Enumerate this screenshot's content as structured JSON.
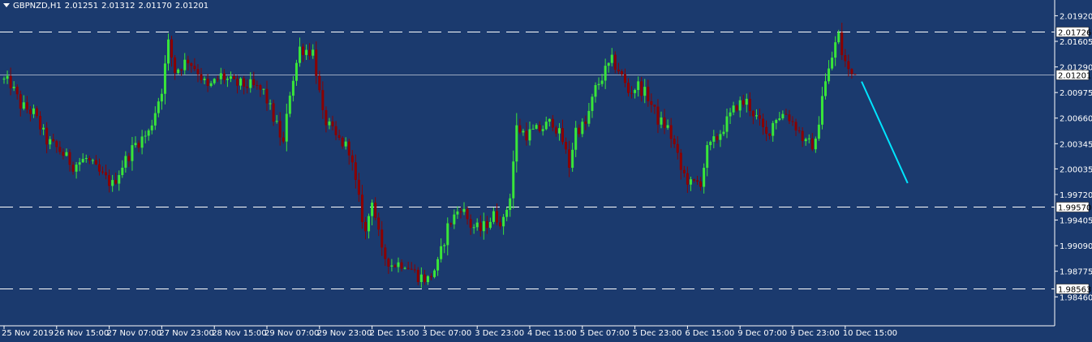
{
  "header": {
    "symbol": "GBPNZD,H1",
    "open": "2.01251",
    "high": "2.01312",
    "low": "2.01170",
    "close": "2.01201"
  },
  "colors": {
    "background": "#1b3a6e",
    "bull": "#39e639",
    "bear": "#8b0000",
    "grid": "#ffffff",
    "trend_line": "#00e5ff",
    "label_bg": "#ffffff",
    "label_text": "#000000"
  },
  "chart_data": {
    "type": "candlestick",
    "symbol": "GBPNZD",
    "timeframe": "H1",
    "ylim": [
      1.9846,
      2.0208
    ],
    "y_ticks": [
      2.0192,
      2.01605,
      2.0129,
      2.00975,
      2.0066,
      2.00345,
      2.00035,
      1.9972,
      1.99405,
      1.9909,
      1.98775,
      1.9846
    ],
    "y_tick_labels": [
      "2.01920",
      "2.01605",
      "2.01290",
      "2.00975",
      "2.00660",
      "2.00345",
      "2.00035",
      "1.99720",
      "1.99405",
      "1.99090",
      "1.98775",
      "1.98460"
    ],
    "x_labels": [
      "25 Nov 2019",
      "26 Nov 15:00",
      "27 Nov 07:00",
      "27 Nov 23:00",
      "28 Nov 15:00",
      "29 Nov 07:00",
      "29 Nov 23:00",
      "2 Dec 15:00",
      "3 Dec 07:00",
      "3 Dec 23:00",
      "4 Dec 15:00",
      "5 Dec 07:00",
      "5 Dec 23:00",
      "6 Dec 15:00",
      "9 Dec 07:00",
      "9 Dec 23:00",
      "10 Dec 15:00"
    ],
    "x_label_bars": [
      0,
      16,
      32,
      48,
      64,
      80,
      96,
      112,
      128,
      144,
      160,
      176,
      192,
      208,
      224,
      240,
      256
    ],
    "horizontal_levels": [
      {
        "value": 2.01726,
        "label": "2.01726",
        "style": "dashed"
      },
      {
        "value": 1.9957,
        "label": "1.99570",
        "style": "dashed"
      },
      {
        "value": 1.98563,
        "label": "1.98563",
        "style": "dashed"
      },
      {
        "value": 2.01201,
        "label": "2.01201",
        "style": "solid"
      }
    ],
    "current_price": 2.01201,
    "trend_line": {
      "start": {
        "bar": 261,
        "value": 2.0111
      },
      "end": {
        "bar": 275,
        "value": 1.9986
      }
    },
    "anchors": [
      [
        0,
        2.0114
      ],
      [
        3,
        2.0108
      ],
      [
        6,
        2.0082
      ],
      [
        10,
        2.0072
      ],
      [
        14,
        2.0038
      ],
      [
        18,
        2.0026
      ],
      [
        22,
        2.0008
      ],
      [
        26,
        2.0016
      ],
      [
        30,
        1.9998
      ],
      [
        34,
        1.9984
      ],
      [
        37,
        2.0008
      ],
      [
        41,
        2.0034
      ],
      [
        45,
        2.0048
      ],
      [
        49,
        2.0102
      ],
      [
        51,
        2.0158
      ],
      [
        53,
        2.0124
      ],
      [
        57,
        2.0138
      ],
      [
        60,
        2.0124
      ],
      [
        63,
        2.0102
      ],
      [
        67,
        2.0118
      ],
      [
        71,
        2.0108
      ],
      [
        76,
        2.0106
      ],
      [
        80,
        2.0098
      ],
      [
        84,
        2.0056
      ],
      [
        86,
        2.0034
      ],
      [
        88,
        2.0098
      ],
      [
        91,
        2.0152
      ],
      [
        95,
        2.0148
      ],
      [
        96,
        2.0124
      ],
      [
        98,
        2.0068
      ],
      [
        102,
        2.0042
      ],
      [
        106,
        2.0028
      ],
      [
        109,
        1.9964
      ],
      [
        111,
        1.9924
      ],
      [
        113,
        1.9968
      ],
      [
        116,
        1.9899
      ],
      [
        119,
        1.9886
      ],
      [
        123,
        1.9888
      ],
      [
        127,
        1.9872
      ],
      [
        130,
        1.9867
      ],
      [
        133,
        1.9886
      ],
      [
        136,
        1.9932
      ],
      [
        140,
        1.9958
      ],
      [
        143,
        1.9934
      ],
      [
        146,
        1.9928
      ],
      [
        150,
        1.9946
      ],
      [
        153,
        1.9938
      ],
      [
        155,
        1.9972
      ],
      [
        157,
        2.0054
      ],
      [
        160,
        2.0046
      ],
      [
        164,
        2.0052
      ],
      [
        168,
        2.0062
      ],
      [
        171,
        2.0038
      ],
      [
        173,
        2.0008
      ],
      [
        175,
        2.0052
      ],
      [
        178,
        2.0058
      ],
      [
        181,
        2.0102
      ],
      [
        184,
        2.0124
      ],
      [
        186,
        2.0136
      ],
      [
        188,
        2.0126
      ],
      [
        191,
        2.0098
      ],
      [
        194,
        2.0106
      ],
      [
        197,
        2.0092
      ],
      [
        200,
        2.0064
      ],
      [
        203,
        2.0054
      ],
      [
        205,
        2.0032
      ],
      [
        207,
        2.0002
      ],
      [
        210,
        1.9984
      ],
      [
        213,
        1.9988
      ],
      [
        215,
        2.0026
      ],
      [
        218,
        2.0042
      ],
      [
        221,
        2.0062
      ],
      [
        224,
        2.0082
      ],
      [
        227,
        2.0086
      ],
      [
        230,
        2.0066
      ],
      [
        233,
        2.0044
      ],
      [
        236,
        2.0068
      ],
      [
        239,
        2.0072
      ],
      [
        242,
        2.0056
      ],
      [
        245,
        2.0034
      ],
      [
        248,
        2.0034
      ],
      [
        250,
        2.0096
      ],
      [
        252,
        2.0124
      ],
      [
        254,
        2.0158
      ],
      [
        255,
        2.0168
      ],
      [
        256,
        2.0146
      ],
      [
        258,
        2.0124
      ],
      [
        259,
        2.012
      ]
    ],
    "candle_count": 260
  }
}
